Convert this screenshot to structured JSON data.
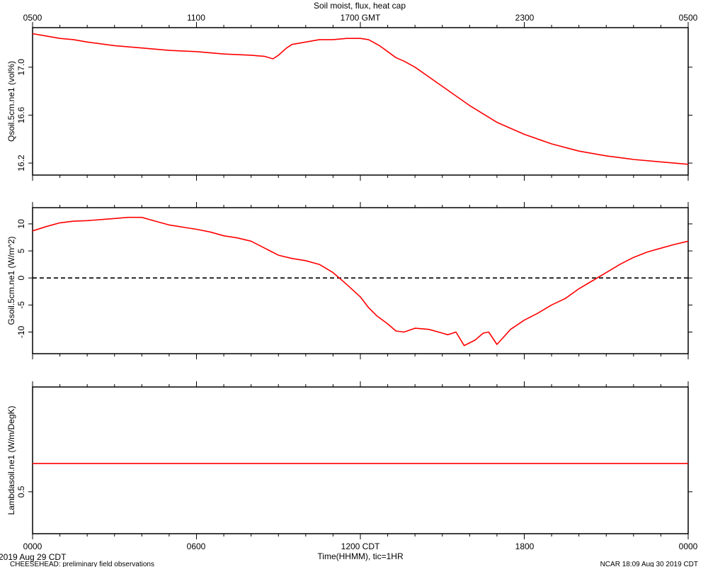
{
  "title": "Soil moist, flux, heat cap",
  "top_axis_ticks": [
    "0500",
    "1100",
    "1700 GMT",
    "2300",
    "0500"
  ],
  "bottom_axis_ticks": [
    "0000",
    "0600",
    "1200 CDT",
    "1800",
    "0000"
  ],
  "xlabel": "Time(HHMM), tic=1HR",
  "footer": {
    "left_date": "2019 Aug 29 CDT",
    "left_note": "CHEESEHEAD: preliminary field observations",
    "right_note": "NCAR 18:09 Aug 30 2019 CDT"
  },
  "colors": {
    "series": "#ff0000",
    "axis": "#000000",
    "zero_line": "#000000"
  },
  "chart_data": [
    {
      "type": "line",
      "ylabel": "Qsoil.5cm.ne1 (vol%)",
      "xlim": [
        0,
        24
      ],
      "ylim": [
        16.1,
        17.33
      ],
      "yticks": [
        16.2,
        16.6,
        17.0
      ],
      "ytick_labels": [
        "16.2",
        "16.6",
        "17.0"
      ],
      "series": [
        {
          "x": [
            0,
            0.5,
            1,
            1.5,
            2,
            3,
            4,
            5,
            6,
            7,
            8,
            8.5,
            8.8,
            9,
            9.3,
            9.5,
            10,
            10.5,
            11,
            11.5,
            12,
            12.3,
            12.7,
            13,
            13.3,
            13.6,
            14,
            15,
            16,
            17,
            18,
            19,
            20,
            21,
            22,
            23,
            24
          ],
          "y": [
            17.28,
            17.26,
            17.24,
            17.23,
            17.21,
            17.18,
            17.16,
            17.14,
            17.13,
            17.11,
            17.1,
            17.09,
            17.07,
            17.1,
            17.16,
            17.19,
            17.21,
            17.23,
            17.23,
            17.24,
            17.24,
            17.23,
            17.18,
            17.13,
            17.08,
            17.05,
            17.0,
            16.84,
            16.68,
            16.54,
            16.44,
            16.36,
            16.3,
            16.26,
            16.23,
            16.21,
            16.19
          ]
        }
      ]
    },
    {
      "type": "line",
      "ylabel": "Gsoil.5cm.ne1 (W/m^2)",
      "xlim": [
        0,
        24
      ],
      "ylim": [
        -14,
        13
      ],
      "yticks": [
        -10,
        -5,
        0,
        5,
        10
      ],
      "ytick_labels": [
        "-10",
        "-5",
        "0",
        "5",
        "10"
      ],
      "zero_line": 0,
      "series": [
        {
          "x": [
            0,
            0.5,
            1,
            1.5,
            2,
            2.5,
            3,
            3.5,
            4,
            4.5,
            5,
            5.5,
            6,
            6.5,
            7,
            7.5,
            8,
            8.5,
            9,
            9.5,
            10,
            10.5,
            11,
            11.5,
            12,
            12.3,
            12.6,
            13,
            13.3,
            13.6,
            14,
            14.5,
            15,
            15.2,
            15.5,
            15.8,
            16.2,
            16.5,
            16.7,
            17,
            17.5,
            18,
            18.5,
            19,
            19.5,
            20,
            20.5,
            21,
            21.5,
            22,
            22.5,
            23,
            23.5,
            24
          ],
          "y": [
            8.7,
            9.5,
            10.2,
            10.5,
            10.6,
            10.8,
            11.0,
            11.2,
            11.2,
            10.5,
            9.8,
            9.4,
            9.0,
            8.5,
            7.8,
            7.4,
            6.8,
            5.5,
            4.2,
            3.6,
            3.2,
            2.5,
            1.0,
            -1.2,
            -3.5,
            -5.5,
            -7.0,
            -8.5,
            -9.8,
            -10.0,
            -9.3,
            -9.5,
            -10.2,
            -10.5,
            -10.0,
            -12.5,
            -11.5,
            -10.2,
            -10.0,
            -12.3,
            -9.5,
            -7.8,
            -6.5,
            -5.0,
            -3.8,
            -2.0,
            -0.5,
            1.0,
            2.5,
            3.8,
            4.8,
            5.5,
            6.2,
            6.8
          ]
        }
      ]
    },
    {
      "type": "line",
      "ylabel": "Lambdasoil.ne1 (W/m/DegK)",
      "xlim": [
        0,
        24
      ],
      "ylim": [
        0.46,
        0.6
      ],
      "yticks": [
        0.5
      ],
      "ytick_labels": [
        "0.5"
      ],
      "series": [
        {
          "x": [
            0,
            24
          ],
          "y": [
            0.527,
            0.527
          ]
        }
      ]
    }
  ]
}
